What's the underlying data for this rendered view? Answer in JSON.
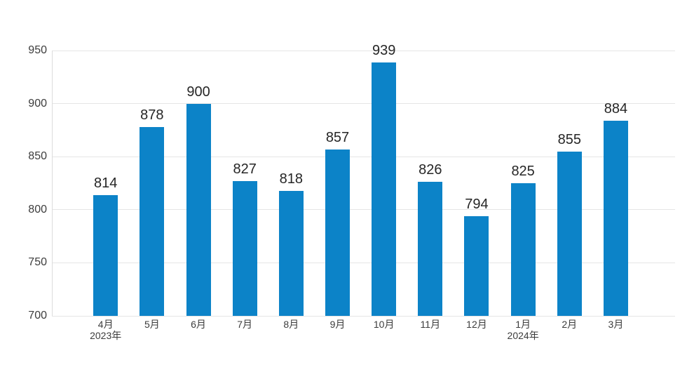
{
  "chart": {
    "bar_color": "#0c83c8",
    "grid_color": "#e5e5e5",
    "axis_color": "#dcdcdc",
    "tick_color": "#3c3c3c",
    "value_label_color": "#262626"
  },
  "chart_data": {
    "type": "bar",
    "title": "",
    "xlabel": "",
    "ylabel": "",
    "categories": [
      "4月",
      "5月",
      "6月",
      "7月",
      "8月",
      "9月",
      "10月",
      "11月",
      "12月",
      "1月",
      "2月",
      "3月"
    ],
    "category_sublabels": [
      "2023年",
      "",
      "",
      "",
      "",
      "",
      "",
      "",
      "",
      "2024年",
      "",
      ""
    ],
    "values": [
      814,
      878,
      900,
      827,
      818,
      857,
      939,
      826,
      794,
      825,
      855,
      884
    ],
    "data_labels_shown": true,
    "ylim": [
      700,
      950
    ],
    "yticks": [
      950,
      900,
      850,
      800,
      750,
      700
    ],
    "grid": true,
    "legend": "none"
  }
}
